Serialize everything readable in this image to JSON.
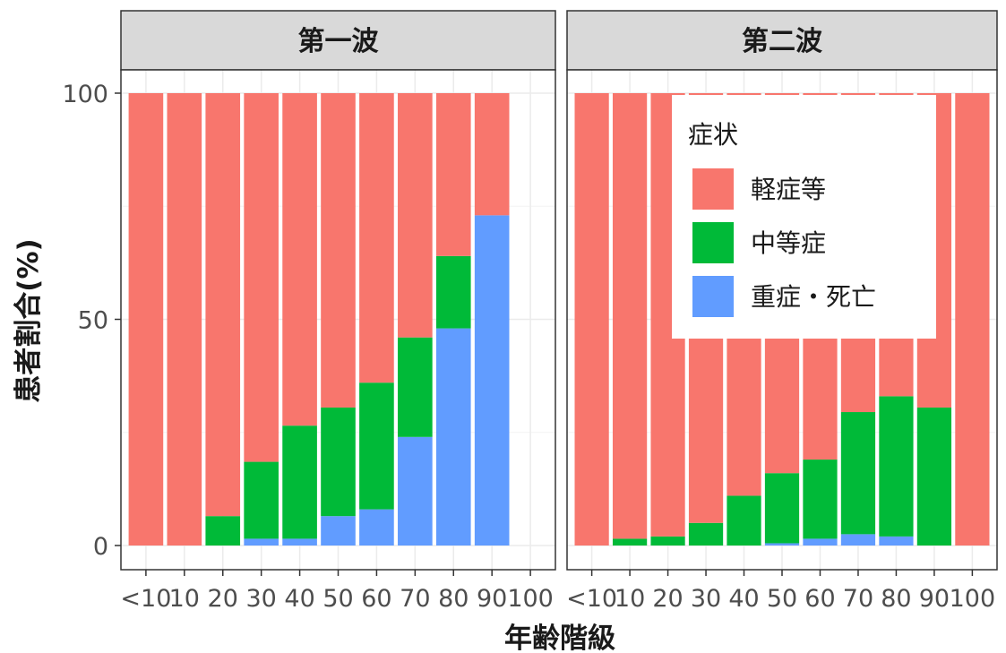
{
  "chart_data": {
    "type": "bar",
    "stacked": true,
    "ylabel": "患者割合(%)",
    "xlabel": "年齢階級",
    "ylim": [
      0,
      100
    ],
    "yticks": [
      0,
      50,
      100
    ],
    "grid": true,
    "legend": {
      "title": "症状",
      "placement": "top-right",
      "entries": [
        "軽症等",
        "中等症",
        "重症・死亡"
      ]
    },
    "colors": {
      "軽症等": "#F8766D",
      "中等症": "#00BA38",
      "重症・死亡": "#619CFF"
    },
    "categories": [
      "<10",
      "10",
      "20",
      "30",
      "40",
      "50",
      "60",
      "70",
      "80",
      "90",
      "100"
    ],
    "panels": [
      {
        "title": "第一波",
        "series": [
          {
            "name": "重症・死亡",
            "values": [
              0,
              0,
              0,
              1.5,
              1.5,
              6.5,
              8,
              24,
              48,
              73,
              null
            ]
          },
          {
            "name": "中等症",
            "values": [
              0,
              0,
              6.5,
              17,
              25,
              24,
              28,
              22,
              16,
              0,
              null
            ]
          },
          {
            "name": "軽症等",
            "values": [
              100,
              100,
              93.5,
              81.5,
              73.5,
              69.5,
              64,
              54,
              36,
              27,
              null
            ]
          }
        ]
      },
      {
        "title": "第二波",
        "series": [
          {
            "name": "重症・死亡",
            "values": [
              0,
              0,
              0,
              0,
              0,
              0.5,
              1.5,
              2.5,
              2,
              0,
              0
            ]
          },
          {
            "name": "中等症",
            "values": [
              0,
              1.5,
              2,
              5,
              11,
              15.5,
              17.5,
              27,
              31,
              30.5,
              0
            ]
          },
          {
            "name": "軽症等",
            "values": [
              100,
              98.5,
              98,
              95,
              89,
              84,
              81,
              70.5,
              67,
              69.5,
              100
            ]
          }
        ]
      }
    ]
  }
}
